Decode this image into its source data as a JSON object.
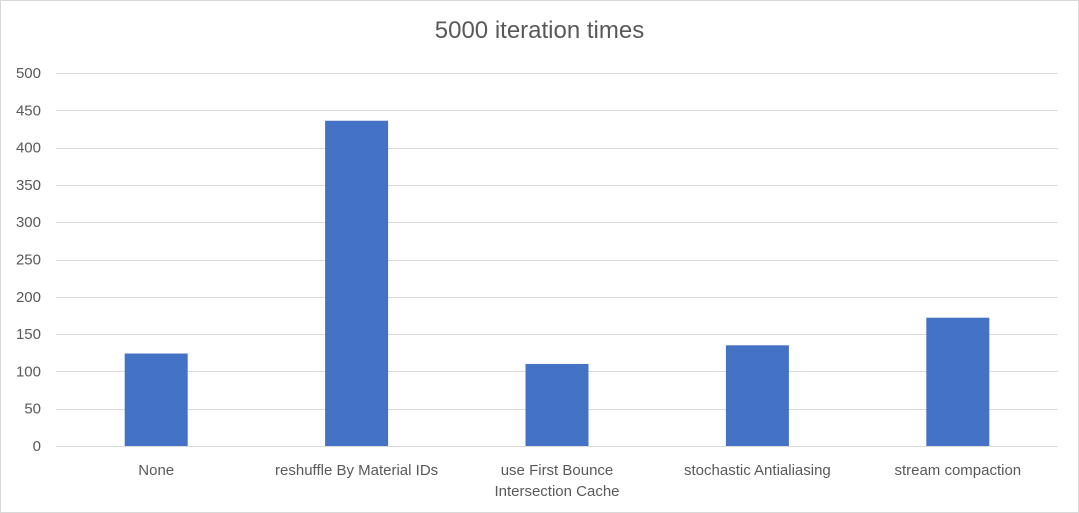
{
  "chart_data": {
    "type": "bar",
    "title": "5000 iteration times",
    "xlabel": "",
    "ylabel": "",
    "categories": [
      [
        "None"
      ],
      [
        "reshuffle By Material IDs"
      ],
      [
        "use First Bounce",
        "Intersection Cache"
      ],
      [
        "stochastic Antialiasing"
      ],
      [
        "stream compaction"
      ]
    ],
    "values": [
      124,
      436,
      110,
      135,
      172
    ],
    "ylim": [
      0,
      500
    ],
    "yticks": [
      0,
      50,
      100,
      150,
      200,
      250,
      300,
      350,
      400,
      450,
      500
    ],
    "grid": true,
    "legend": "none",
    "colors": {
      "bar": "#4472c4",
      "grid": "#d9d9d9",
      "text": "#595959"
    }
  }
}
